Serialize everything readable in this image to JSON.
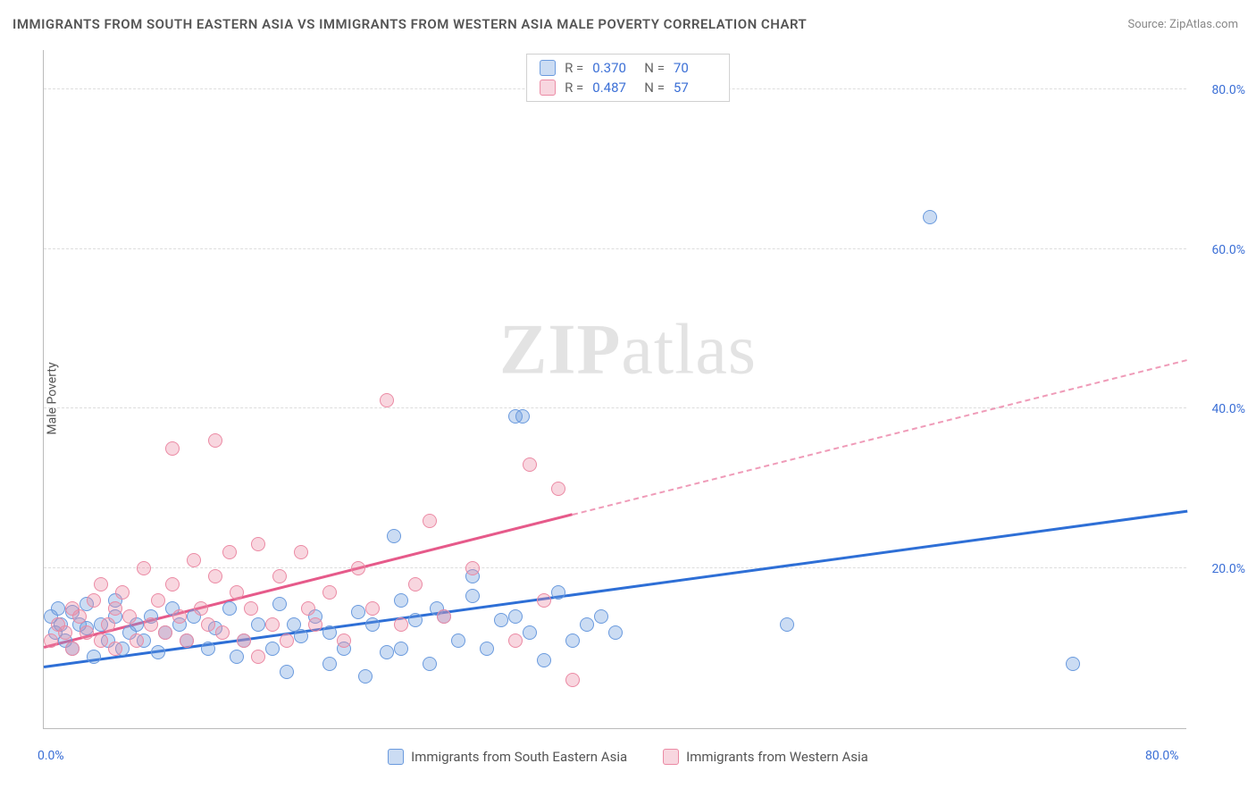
{
  "title": "IMMIGRANTS FROM SOUTH EASTERN ASIA VS IMMIGRANTS FROM WESTERN ASIA MALE POVERTY CORRELATION CHART",
  "source": "Source: ZipAtlas.com",
  "yaxis_label": "Male Poverty",
  "watermark_bold": "ZIP",
  "watermark_rest": "atlas",
  "chart": {
    "type": "scatter",
    "xlim": [
      0,
      80
    ],
    "ylim": [
      0,
      85
    ],
    "xtick_labels": [
      "0.0%",
      "80.0%"
    ],
    "xtick_positions": [
      0,
      80
    ],
    "ytick_labels": [
      "20.0%",
      "40.0%",
      "60.0%",
      "80.0%"
    ],
    "ytick_positions": [
      20,
      40,
      60,
      80
    ],
    "grid_color": "#dddddd",
    "axis_color": "#bbbbbb",
    "background_color": "#ffffff",
    "tick_font_color": "#3b6fd6",
    "tick_fontsize": 14,
    "series": [
      {
        "name": "Immigrants from South Eastern Asia",
        "color_fill": "rgba(106,154,222,0.35)",
        "color_stroke": "#6a9ade",
        "trend_color": "#2e6fd6",
        "marker_radius": 8,
        "R": "0.370",
        "N": "70",
        "trend": {
          "x1": 0,
          "y1": 7.5,
          "x2": 80,
          "y2": 27,
          "dashed_from_x": null
        },
        "points": [
          [
            0.5,
            14
          ],
          [
            0.8,
            12
          ],
          [
            1,
            15
          ],
          [
            1.2,
            13
          ],
          [
            1.5,
            11
          ],
          [
            2,
            14.5
          ],
          [
            2,
            10
          ],
          [
            2.5,
            13
          ],
          [
            3,
            12.5
          ],
          [
            3,
            15.5
          ],
          [
            3.5,
            9
          ],
          [
            4,
            13
          ],
          [
            4.5,
            11
          ],
          [
            5,
            14
          ],
          [
            5,
            16
          ],
          [
            5.5,
            10
          ],
          [
            6,
            12
          ],
          [
            6.5,
            13
          ],
          [
            7,
            11
          ],
          [
            7.5,
            14
          ],
          [
            8,
            9.5
          ],
          [
            8.5,
            12
          ],
          [
            9,
            15
          ],
          [
            9.5,
            13
          ],
          [
            10,
            11
          ],
          [
            10.5,
            14
          ],
          [
            11.5,
            10
          ],
          [
            12,
            12.5
          ],
          [
            13,
            15
          ],
          [
            13.5,
            9
          ],
          [
            14,
            11
          ],
          [
            15,
            13
          ],
          [
            16,
            10
          ],
          [
            16.5,
            15.5
          ],
          [
            17,
            7
          ],
          [
            17.5,
            13
          ],
          [
            18,
            11.5
          ],
          [
            19,
            14
          ],
          [
            20,
            8
          ],
          [
            20,
            12
          ],
          [
            21,
            10
          ],
          [
            22,
            14.5
          ],
          [
            22.5,
            6.5
          ],
          [
            23,
            13
          ],
          [
            24,
            9.5
          ],
          [
            24.5,
            24
          ],
          [
            25,
            16
          ],
          [
            25,
            10
          ],
          [
            26,
            13.5
          ],
          [
            27,
            8
          ],
          [
            27.5,
            15
          ],
          [
            28,
            14
          ],
          [
            29,
            11
          ],
          [
            30,
            16.5
          ],
          [
            30,
            19
          ],
          [
            31,
            10
          ],
          [
            32,
            13.5
          ],
          [
            33,
            14
          ],
          [
            33,
            39
          ],
          [
            33.5,
            39
          ],
          [
            34,
            12
          ],
          [
            35,
            8.5
          ],
          [
            36,
            17
          ],
          [
            37,
            11
          ],
          [
            38,
            13
          ],
          [
            39,
            14
          ],
          [
            40,
            12
          ],
          [
            52,
            13
          ],
          [
            62,
            64
          ],
          [
            72,
            8
          ]
        ]
      },
      {
        "name": "Immigrants from Western Asia",
        "color_fill": "rgba(235,138,164,0.35)",
        "color_stroke": "#eb8aa4",
        "trend_color": "#e65a8a",
        "marker_radius": 8,
        "R": "0.487",
        "N": "57",
        "trend": {
          "x1": 0,
          "y1": 10,
          "x2": 80,
          "y2": 46,
          "dashed_from_x": 37
        },
        "points": [
          [
            0.5,
            11
          ],
          [
            1,
            13
          ],
          [
            1.5,
            12
          ],
          [
            2,
            15
          ],
          [
            2,
            10
          ],
          [
            2.5,
            14
          ],
          [
            3,
            12
          ],
          [
            3.5,
            16
          ],
          [
            4,
            11
          ],
          [
            4,
            18
          ],
          [
            4.5,
            13
          ],
          [
            5,
            15
          ],
          [
            5,
            10
          ],
          [
            5.5,
            17
          ],
          [
            6,
            14
          ],
          [
            6.5,
            11
          ],
          [
            7,
            20
          ],
          [
            7.5,
            13
          ],
          [
            8,
            16
          ],
          [
            8.5,
            12
          ],
          [
            9,
            35
          ],
          [
            9,
            18
          ],
          [
            9.5,
            14
          ],
          [
            10,
            11
          ],
          [
            10.5,
            21
          ],
          [
            11,
            15
          ],
          [
            11.5,
            13
          ],
          [
            12,
            36
          ],
          [
            12,
            19
          ],
          [
            12.5,
            12
          ],
          [
            13,
            22
          ],
          [
            13.5,
            17
          ],
          [
            14,
            11
          ],
          [
            14.5,
            15
          ],
          [
            15,
            9
          ],
          [
            15,
            23
          ],
          [
            16,
            13
          ],
          [
            16.5,
            19
          ],
          [
            17,
            11
          ],
          [
            18,
            22
          ],
          [
            18.5,
            15
          ],
          [
            19,
            13
          ],
          [
            20,
            17
          ],
          [
            21,
            11
          ],
          [
            22,
            20
          ],
          [
            23,
            15
          ],
          [
            24,
            41
          ],
          [
            25,
            13
          ],
          [
            26,
            18
          ],
          [
            27,
            26
          ],
          [
            28,
            14
          ],
          [
            30,
            20
          ],
          [
            33,
            11
          ],
          [
            34,
            33
          ],
          [
            35,
            16
          ],
          [
            36,
            30
          ],
          [
            37,
            6
          ]
        ]
      }
    ]
  },
  "legend_bottom": [
    {
      "label": "Immigrants from South Eastern Asia",
      "fill": "rgba(106,154,222,0.35)",
      "stroke": "#6a9ade"
    },
    {
      "label": "Immigrants from Western Asia",
      "fill": "rgba(235,138,164,0.35)",
      "stroke": "#eb8aa4"
    }
  ]
}
